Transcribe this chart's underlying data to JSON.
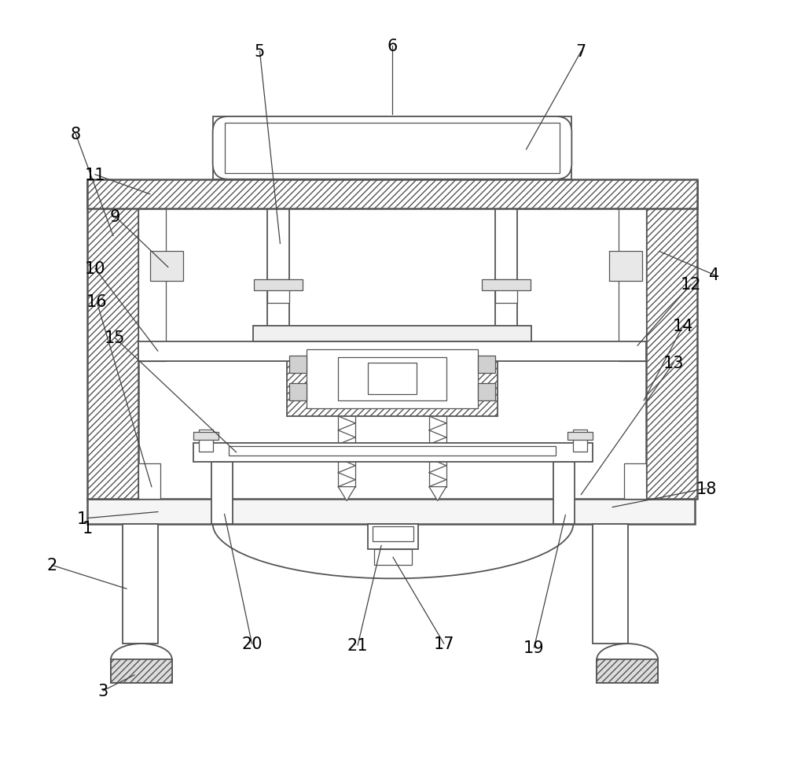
{
  "bg_color": "#ffffff",
  "line_color": "#555555",
  "figsize": [
    10.0,
    9.95
  ],
  "dpi": 100,
  "lw_thick": 1.8,
  "lw_med": 1.3,
  "lw_thin": 0.9,
  "label_fs": 15
}
